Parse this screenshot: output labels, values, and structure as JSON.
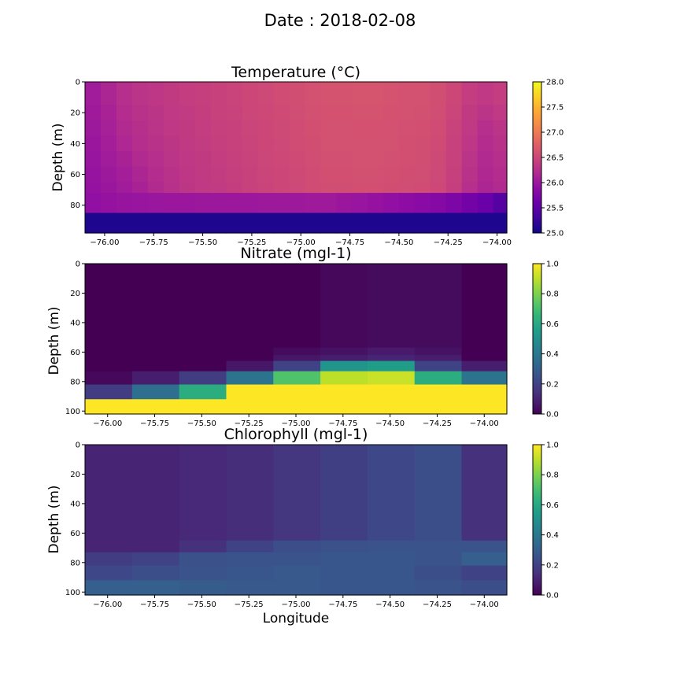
{
  "suptitle": "Date : 2018-02-08",
  "chart_data": [
    {
      "type": "heatmap",
      "title": "Temperature (°C)",
      "xlabel": "",
      "ylabel": "Depth (m)",
      "colormap": "plasma",
      "clim": [
        25.0,
        28.0
      ],
      "xlim": [
        -76.1,
        -73.95
      ],
      "ylim": [
        98,
        0
      ],
      "xticks": [
        -76.0,
        -75.75,
        -75.5,
        -75.25,
        -75.0,
        -74.75,
        -74.5,
        -74.25,
        -74.0
      ],
      "xtick_labels": [
        "−76.00",
        "−75.75",
        "−75.50",
        "−75.25",
        "−75.00",
        "−74.75",
        "−74.50",
        "−74.25",
        "−74.00"
      ],
      "yticks": [
        0,
        20,
        40,
        60,
        80
      ],
      "ytick_labels": [
        "0",
        "20",
        "40",
        "60",
        "80"
      ],
      "colorbar_ticks": [
        25.0,
        25.5,
        26.0,
        26.5,
        27.0,
        27.5,
        28.0
      ],
      "colorbar_tick_labels": [
        "25.0",
        "25.5",
        "26.0",
        "26.5",
        "27.0",
        "27.5",
        "28.0"
      ],
      "x_edges": [
        -76.1,
        -76.02,
        -75.94,
        -75.86,
        -75.78,
        -75.7,
        -75.62,
        -75.54,
        -75.46,
        -75.38,
        -75.3,
        -75.22,
        -75.14,
        -75.06,
        -74.98,
        -74.9,
        -74.82,
        -74.74,
        -74.66,
        -74.58,
        -74.5,
        -74.42,
        -74.34,
        -74.26,
        -74.18,
        -74.1,
        -74.02,
        -73.95
      ],
      "y_edges": [
        0,
        5,
        10,
        15,
        20,
        25,
        30,
        35,
        40,
        45,
        50,
        55,
        60,
        65,
        72,
        85,
        98
      ],
      "values": [
        [
          26.05,
          26.15,
          26.25,
          26.3,
          26.33,
          26.37,
          26.4,
          26.42,
          26.45,
          26.47,
          26.5,
          26.52,
          26.55,
          26.57,
          26.6,
          26.62,
          26.62,
          26.63,
          26.63,
          26.62,
          26.6,
          26.6,
          26.57,
          26.5,
          26.4,
          26.35,
          26.4
        ],
        [
          26.05,
          26.15,
          26.25,
          26.3,
          26.33,
          26.37,
          26.4,
          26.42,
          26.45,
          26.47,
          26.5,
          26.52,
          26.55,
          26.57,
          26.6,
          26.62,
          26.62,
          26.63,
          26.63,
          26.62,
          26.6,
          26.6,
          26.57,
          26.5,
          26.4,
          26.35,
          26.4
        ],
        [
          26.05,
          26.15,
          26.25,
          26.3,
          26.33,
          26.37,
          26.4,
          26.42,
          26.45,
          26.47,
          26.5,
          26.52,
          26.55,
          26.57,
          26.6,
          26.62,
          26.62,
          26.63,
          26.63,
          26.62,
          26.6,
          26.6,
          26.57,
          26.5,
          26.4,
          26.35,
          26.4
        ],
        [
          26.03,
          26.12,
          26.22,
          26.28,
          26.31,
          26.35,
          26.38,
          26.41,
          26.44,
          26.46,
          26.49,
          26.51,
          26.54,
          26.56,
          26.59,
          26.61,
          26.61,
          26.62,
          26.62,
          26.61,
          26.6,
          26.59,
          26.56,
          26.48,
          26.37,
          26.3,
          26.35
        ],
        [
          26.03,
          26.12,
          26.22,
          26.28,
          26.31,
          26.35,
          26.38,
          26.41,
          26.44,
          26.46,
          26.49,
          26.51,
          26.54,
          26.56,
          26.59,
          26.61,
          26.61,
          26.62,
          26.62,
          26.61,
          26.6,
          26.59,
          26.56,
          26.48,
          26.37,
          26.3,
          26.35
        ],
        [
          26.02,
          26.1,
          26.2,
          26.26,
          26.3,
          26.34,
          26.37,
          26.4,
          26.43,
          26.45,
          26.48,
          26.5,
          26.53,
          26.55,
          26.58,
          26.6,
          26.6,
          26.61,
          26.61,
          26.6,
          26.59,
          26.58,
          26.55,
          26.46,
          26.35,
          26.25,
          26.3
        ],
        [
          26.02,
          26.1,
          26.2,
          26.26,
          26.3,
          26.34,
          26.37,
          26.4,
          26.43,
          26.45,
          26.48,
          26.5,
          26.53,
          26.55,
          26.58,
          26.6,
          26.6,
          26.61,
          26.61,
          26.6,
          26.59,
          26.58,
          26.55,
          26.46,
          26.35,
          26.25,
          26.3
        ],
        [
          26.0,
          26.08,
          26.17,
          26.24,
          26.28,
          26.32,
          26.36,
          26.39,
          26.42,
          26.44,
          26.47,
          26.5,
          26.52,
          26.55,
          26.57,
          26.6,
          26.6,
          26.6,
          26.6,
          26.6,
          26.58,
          26.57,
          26.54,
          26.45,
          26.33,
          26.22,
          26.28
        ],
        [
          26.0,
          26.08,
          26.17,
          26.24,
          26.28,
          26.32,
          26.36,
          26.39,
          26.42,
          26.44,
          26.47,
          26.5,
          26.52,
          26.55,
          26.57,
          26.6,
          26.6,
          26.6,
          26.6,
          26.6,
          26.58,
          26.57,
          26.54,
          26.45,
          26.33,
          26.22,
          26.28
        ],
        [
          25.98,
          26.05,
          26.12,
          26.2,
          26.25,
          26.3,
          26.34,
          26.37,
          26.4,
          26.43,
          26.46,
          26.49,
          26.51,
          26.54,
          26.56,
          26.59,
          26.59,
          26.6,
          26.6,
          26.59,
          26.58,
          26.57,
          26.53,
          26.44,
          26.3,
          26.2,
          26.25
        ],
        [
          25.98,
          26.05,
          26.12,
          26.2,
          26.25,
          26.3,
          26.34,
          26.37,
          26.4,
          26.43,
          26.46,
          26.49,
          26.51,
          26.54,
          26.56,
          26.59,
          26.59,
          26.6,
          26.6,
          26.59,
          26.58,
          26.57,
          26.53,
          26.44,
          26.3,
          26.2,
          26.25
        ],
        [
          25.96,
          26.02,
          26.08,
          26.15,
          26.22,
          26.28,
          26.33,
          26.36,
          26.39,
          26.42,
          26.45,
          26.48,
          26.5,
          26.53,
          26.55,
          26.58,
          26.58,
          26.59,
          26.59,
          26.58,
          26.57,
          26.56,
          26.52,
          26.43,
          26.28,
          26.18,
          26.22
        ],
        [
          25.96,
          26.02,
          26.08,
          26.15,
          26.22,
          26.28,
          26.33,
          26.36,
          26.39,
          26.42,
          26.45,
          26.48,
          26.5,
          26.53,
          26.55,
          26.58,
          26.58,
          26.59,
          26.59,
          26.58,
          26.57,
          26.56,
          26.52,
          26.43,
          26.28,
          26.18,
          26.22
        ],
        [
          25.95,
          26.0,
          26.05,
          26.12,
          26.2,
          26.27,
          26.32,
          26.35,
          26.38,
          26.41,
          26.44,
          26.47,
          26.5,
          26.52,
          26.55,
          26.57,
          26.57,
          26.58,
          26.58,
          26.57,
          26.56,
          26.55,
          26.51,
          26.42,
          26.25,
          26.15,
          26.2
        ],
        [
          25.92,
          25.95,
          25.97,
          25.98,
          25.99,
          26.0,
          26.0,
          26.01,
          26.01,
          26.01,
          26.01,
          26.02,
          26.02,
          26.02,
          26.03,
          26.03,
          26.0,
          25.98,
          25.95,
          25.92,
          25.88,
          25.85,
          25.82,
          25.75,
          25.68,
          25.6,
          25.45
        ],
        [
          25.1,
          25.1,
          25.1,
          25.1,
          25.1,
          25.1,
          25.1,
          25.1,
          25.1,
          25.1,
          25.1,
          25.1,
          25.1,
          25.1,
          25.1,
          25.1,
          25.1,
          25.1,
          25.1,
          25.1,
          25.1,
          25.1,
          25.1,
          25.1,
          25.1,
          25.1,
          25.1
        ]
      ]
    },
    {
      "type": "heatmap",
      "title": "Nitrate (mgl-1)",
      "xlabel": "",
      "ylabel": "Depth (m)",
      "colormap": "viridis",
      "clim": [
        0.0,
        1.0
      ],
      "xlim": [
        -76.12,
        -73.88
      ],
      "ylim": [
        102,
        0
      ],
      "xticks": [
        -76.0,
        -75.75,
        -75.5,
        -75.25,
        -75.0,
        -74.75,
        -74.5,
        -74.25,
        -74.0
      ],
      "xtick_labels": [
        "−76.00",
        "−75.75",
        "−75.50",
        "−75.25",
        "−75.00",
        "−74.75",
        "−74.50",
        "−74.25",
        "−74.00"
      ],
      "yticks": [
        0,
        20,
        40,
        60,
        80,
        100
      ],
      "ytick_labels": [
        "0",
        "20",
        "40",
        "60",
        "80",
        "100"
      ],
      "colorbar_ticks": [
        0.0,
        0.2,
        0.4,
        0.6,
        0.8,
        1.0
      ],
      "colorbar_tick_labels": [
        "0.0",
        "0.2",
        "0.4",
        "0.6",
        "0.8",
        "1.0"
      ],
      "x_edges": [
        -76.12,
        -75.87,
        -75.62,
        -75.37,
        -75.12,
        -74.87,
        -74.62,
        -74.37,
        -74.12,
        -73.88
      ],
      "y_edges": [
        0,
        57,
        62,
        66,
        73,
        82,
        92,
        102
      ],
      "values": [
        [
          0.0,
          0.0,
          0.0,
          0.0,
          0.0,
          0.02,
          0.03,
          0.03,
          0.0
        ],
        [
          0.0,
          0.0,
          0.0,
          0.0,
          0.03,
          0.05,
          0.07,
          0.05,
          0.0
        ],
        [
          0.0,
          0.0,
          0.0,
          0.0,
          0.06,
          0.08,
          0.1,
          0.08,
          0.0
        ],
        [
          0.0,
          0.0,
          0.0,
          0.06,
          0.2,
          0.52,
          0.55,
          0.2,
          0.08
        ],
        [
          0.02,
          0.08,
          0.18,
          0.38,
          0.72,
          0.9,
          0.92,
          0.62,
          0.38
        ],
        [
          0.18,
          0.36,
          0.62,
          1.0,
          1.0,
          1.0,
          1.0,
          1.0,
          1.0
        ],
        [
          1.0,
          1.0,
          1.0,
          1.0,
          1.0,
          1.0,
          1.0,
          1.0,
          1.0
        ]
      ]
    },
    {
      "type": "heatmap",
      "title": "Chlorophyll  (mgl-1)",
      "xlabel": "Longitude",
      "ylabel": "Depth (m)",
      "colormap": "viridis",
      "clim": [
        0.0,
        1.0
      ],
      "xlim": [
        -76.12,
        -73.88
      ],
      "ylim": [
        102,
        0
      ],
      "xticks": [
        -76.0,
        -75.75,
        -75.5,
        -75.25,
        -75.0,
        -74.75,
        -74.5,
        -74.25,
        -74.0
      ],
      "xtick_labels": [
        "−76.00",
        "−75.75",
        "−75.50",
        "−75.25",
        "−75.00",
        "−74.75",
        "−74.50",
        "−74.25",
        "−74.00"
      ],
      "yticks": [
        0,
        20,
        40,
        60,
        80,
        100
      ],
      "ytick_labels": [
        "0",
        "20",
        "40",
        "60",
        "80",
        "100"
      ],
      "colorbar_ticks": [
        0.0,
        0.2,
        0.4,
        0.6,
        0.8,
        1.0
      ],
      "colorbar_tick_labels": [
        "0.0",
        "0.2",
        "0.4",
        "0.6",
        "0.8",
        "1.0"
      ],
      "x_edges": [
        -76.12,
        -75.87,
        -75.62,
        -75.37,
        -75.12,
        -74.87,
        -74.62,
        -74.37,
        -74.12,
        -73.88
      ],
      "y_edges": [
        0,
        65,
        73,
        82,
        92,
        102
      ],
      "values": [
        [
          0.1,
          0.1,
          0.11,
          0.13,
          0.16,
          0.19,
          0.22,
          0.24,
          0.14
        ],
        [
          0.1,
          0.1,
          0.14,
          0.2,
          0.24,
          0.25,
          0.26,
          0.26,
          0.26
        ],
        [
          0.18,
          0.2,
          0.25,
          0.26,
          0.26,
          0.27,
          0.27,
          0.26,
          0.3
        ],
        [
          0.22,
          0.24,
          0.26,
          0.27,
          0.28,
          0.27,
          0.27,
          0.24,
          0.2
        ],
        [
          0.3,
          0.3,
          0.29,
          0.28,
          0.28,
          0.27,
          0.27,
          0.26,
          0.24
        ]
      ]
    }
  ]
}
